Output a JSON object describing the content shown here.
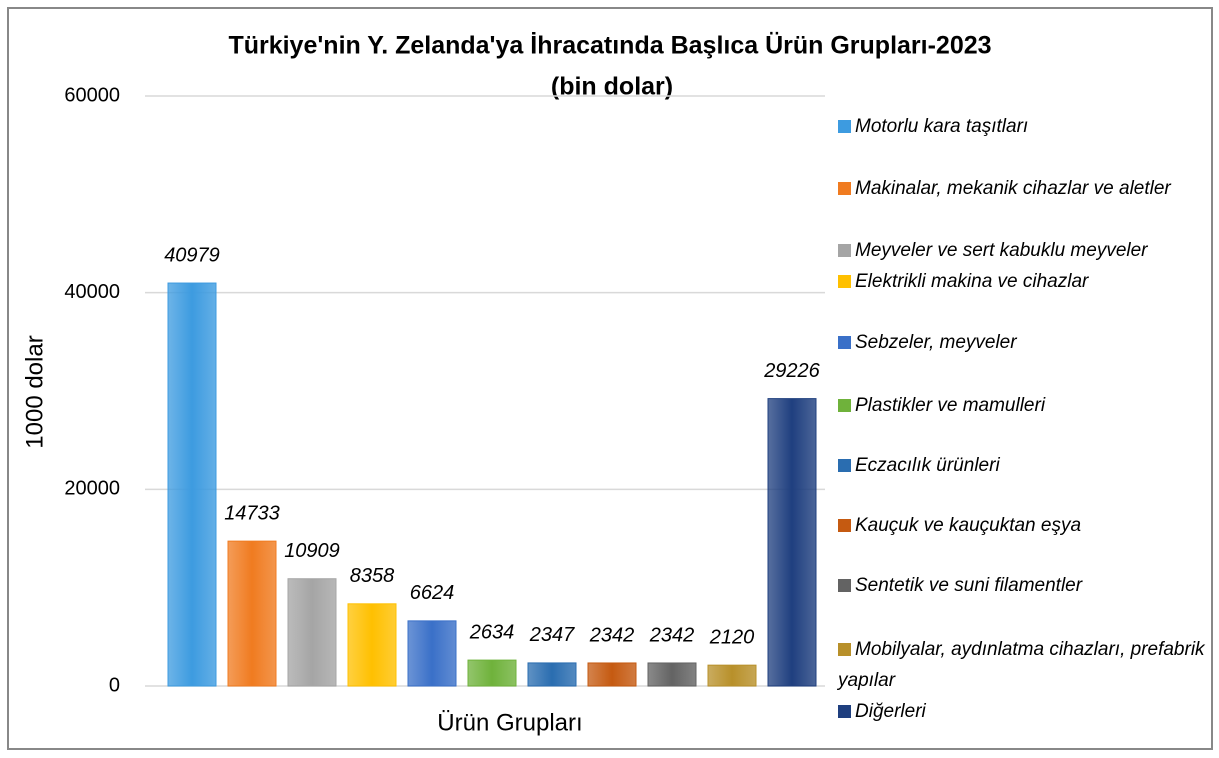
{
  "chart_data": {
    "type": "bar",
    "title": "Türkiye'nin Y. Zelanda'ya İhracatında Başlıca Ürün Grupları-2023",
    "subtitle": "(bin dolar)",
    "x_label": "Ürün Grupları",
    "y_label": "1000 dolar",
    "categories": [
      "Motorlu kara taşıtları",
      "Makinalar, mekanik cihazlar ve aletler",
      "Meyveler ve sert kabuklu meyveler",
      "Elektrikli makina ve cihazlar",
      "Sebzeler, meyveler",
      "Plastikler ve mamulleri",
      "Eczacılık ürünleri",
      "Kauçuk ve kauçuktan eşya",
      "Sentetik ve suni filamentler",
      "Mobilyalar, aydınlatma cihazları, prefabrik yapılar",
      "Diğerleri"
    ],
    "values": [
      40979,
      14733,
      10909,
      8358,
      6624,
      2634,
      2347,
      2342,
      2342,
      2120,
      29226
    ],
    "colors": [
      "#3d9be0",
      "#f07b20",
      "#a5a5a5",
      "#ffc000",
      "#3a70c8",
      "#6fb23b",
      "#2a6db0",
      "#c55a11",
      "#636363",
      "#b8902a",
      "#1f3f7f"
    ],
    "ylim": [
      0,
      60000
    ],
    "yticks": [
      0,
      20000,
      40000,
      60000
    ],
    "grid": true,
    "legend": "right"
  }
}
